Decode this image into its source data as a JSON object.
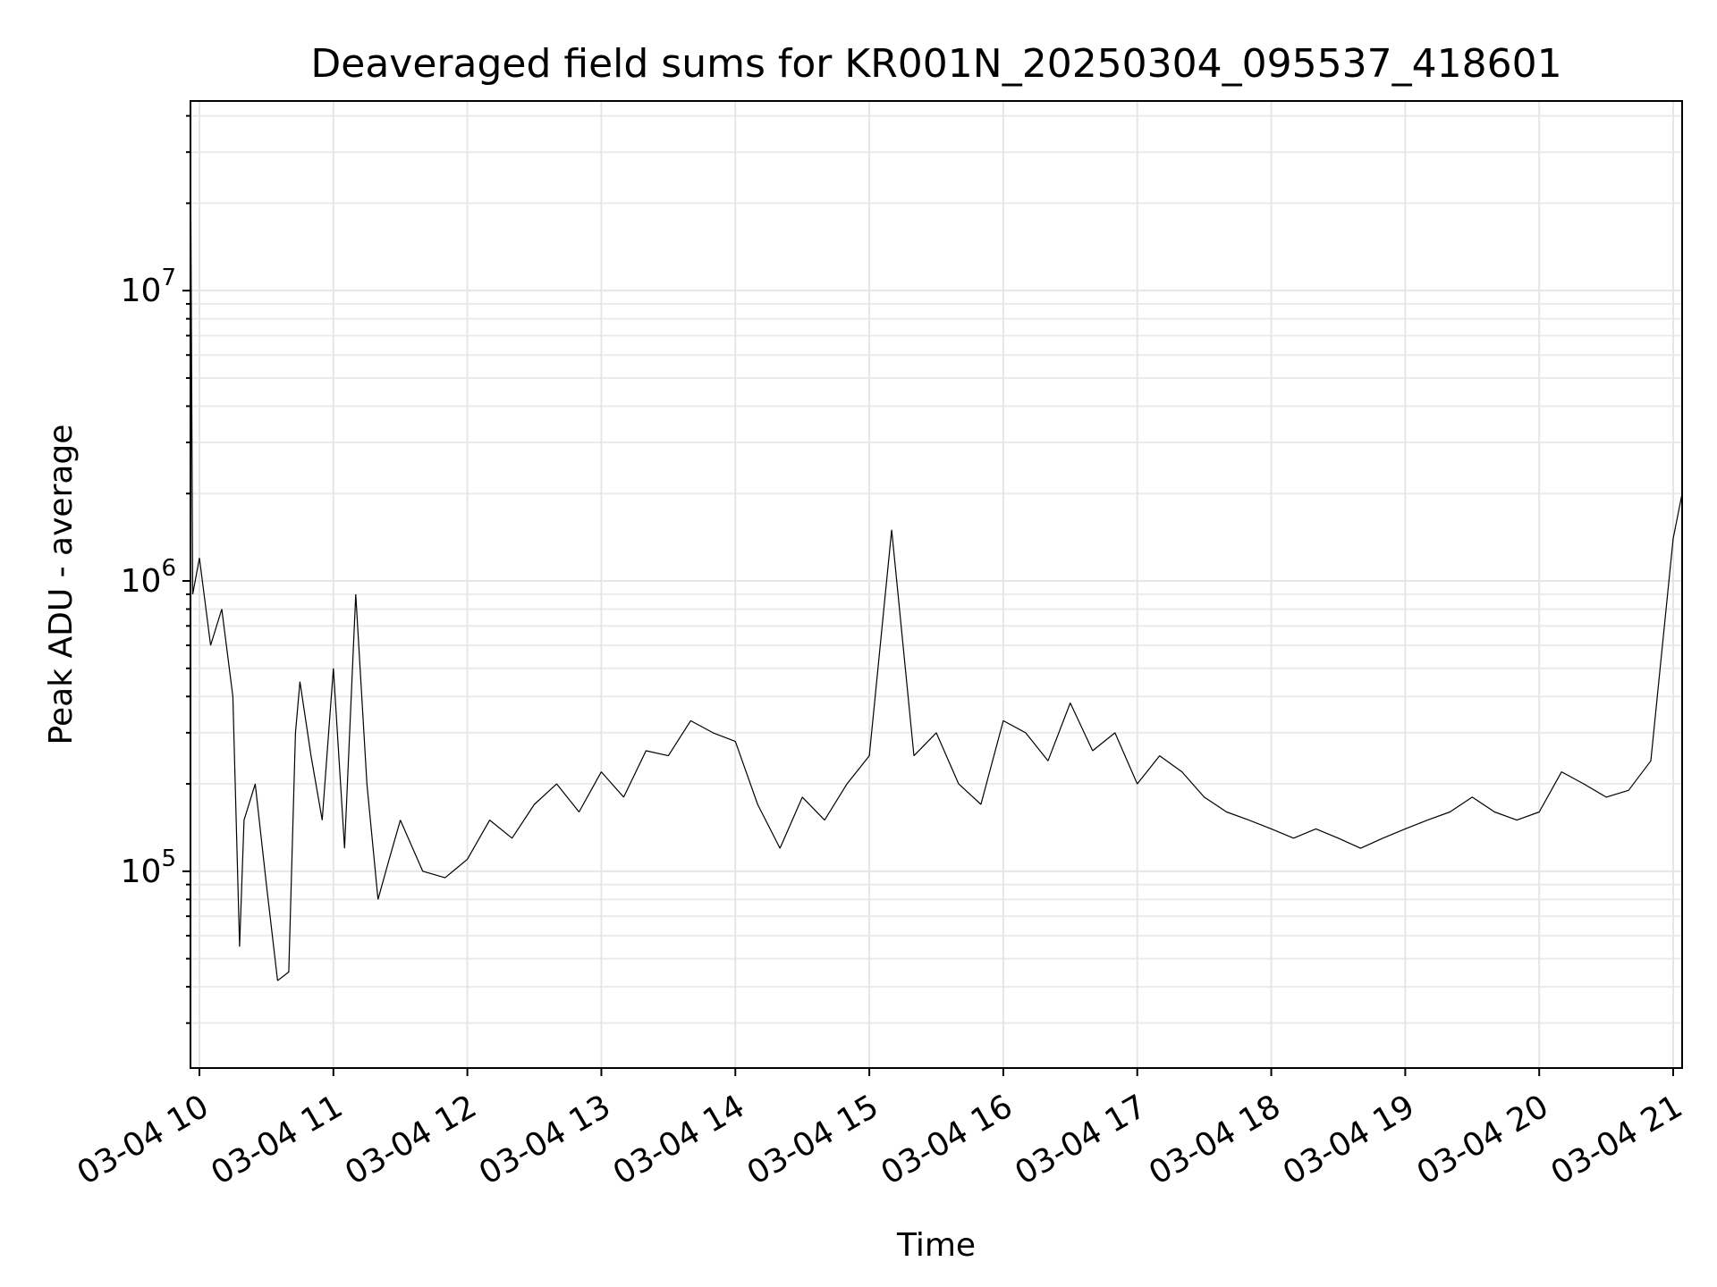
{
  "chart_data": {
    "type": "line",
    "title": "Deaveraged field sums for KR001N_20250304_095537_418601",
    "xlabel": "Time",
    "ylabel": "Peak ADU - average",
    "y_scale": "log",
    "ylim": [
      21000,
      45000000
    ],
    "xlim": [
      "2025-03-04 09:56",
      "2025-03-04 21:04"
    ],
    "grid": true,
    "grid_which": "both",
    "line_color": "#000000",
    "x_ticks": [
      {
        "value": "2025-03-04 10:00",
        "label": "03-04 10"
      },
      {
        "value": "2025-03-04 11:00",
        "label": "03-04 11"
      },
      {
        "value": "2025-03-04 12:00",
        "label": "03-04 12"
      },
      {
        "value": "2025-03-04 13:00",
        "label": "03-04 13"
      },
      {
        "value": "2025-03-04 14:00",
        "label": "03-04 14"
      },
      {
        "value": "2025-03-04 15:00",
        "label": "03-04 15"
      },
      {
        "value": "2025-03-04 16:00",
        "label": "03-04 16"
      },
      {
        "value": "2025-03-04 17:00",
        "label": "03-04 17"
      },
      {
        "value": "2025-03-04 18:00",
        "label": "03-04 18"
      },
      {
        "value": "2025-03-04 19:00",
        "label": "03-04 19"
      },
      {
        "value": "2025-03-04 20:00",
        "label": "03-04 20"
      },
      {
        "value": "2025-03-04 21:00",
        "label": "03-04 21"
      }
    ],
    "y_ticks": [
      {
        "value": 100000,
        "base": "10",
        "exp": "5"
      },
      {
        "value": 1000000,
        "base": "10",
        "exp": "6"
      },
      {
        "value": 10000000,
        "base": "10",
        "exp": "7"
      }
    ],
    "series": [
      {
        "x": [
          "2025-03-04 09:56",
          "2025-03-04 09:57",
          "2025-03-04 10:00",
          "2025-03-04 10:05",
          "2025-03-04 10:10",
          "2025-03-04 10:15",
          "2025-03-04 10:18",
          "2025-03-04 10:20",
          "2025-03-04 10:25",
          "2025-03-04 10:30",
          "2025-03-04 10:35",
          "2025-03-04 10:40",
          "2025-03-04 10:43",
          "2025-03-04 10:45",
          "2025-03-04 10:50",
          "2025-03-04 10:55",
          "2025-03-04 11:00",
          "2025-03-04 11:05",
          "2025-03-04 11:10",
          "2025-03-04 11:15",
          "2025-03-04 11:20",
          "2025-03-04 11:25",
          "2025-03-04 11:30",
          "2025-03-04 11:40",
          "2025-03-04 11:50",
          "2025-03-04 12:00",
          "2025-03-04 12:10",
          "2025-03-04 12:20",
          "2025-03-04 12:30",
          "2025-03-04 12:40",
          "2025-03-04 12:50",
          "2025-03-04 13:00",
          "2025-03-04 13:10",
          "2025-03-04 13:20",
          "2025-03-04 13:30",
          "2025-03-04 13:40",
          "2025-03-04 13:50",
          "2025-03-04 14:00",
          "2025-03-04 14:10",
          "2025-03-04 14:20",
          "2025-03-04 14:30",
          "2025-03-04 14:40",
          "2025-03-04 14:50",
          "2025-03-04 15:00",
          "2025-03-04 15:10",
          "2025-03-04 15:20",
          "2025-03-04 15:30",
          "2025-03-04 15:40",
          "2025-03-04 15:50",
          "2025-03-04 16:00",
          "2025-03-04 16:10",
          "2025-03-04 16:20",
          "2025-03-04 16:30",
          "2025-03-04 16:40",
          "2025-03-04 16:50",
          "2025-03-04 17:00",
          "2025-03-04 17:10",
          "2025-03-04 17:20",
          "2025-03-04 17:30",
          "2025-03-04 17:40",
          "2025-03-04 17:50",
          "2025-03-04 18:00",
          "2025-03-04 18:10",
          "2025-03-04 18:20",
          "2025-03-04 18:30",
          "2025-03-04 18:40",
          "2025-03-04 18:50",
          "2025-03-04 19:00",
          "2025-03-04 19:10",
          "2025-03-04 19:20",
          "2025-03-04 19:30",
          "2025-03-04 19:40",
          "2025-03-04 19:50",
          "2025-03-04 20:00",
          "2025-03-04 20:10",
          "2025-03-04 20:20",
          "2025-03-04 20:30",
          "2025-03-04 20:40",
          "2025-03-04 20:50",
          "2025-03-04 21:00",
          "2025-03-04 21:04"
        ],
        "values": [
          35000000,
          900000,
          1200000,
          600000,
          800000,
          400000,
          55000,
          150000,
          200000,
          90000,
          42000,
          45000,
          300000,
          450000,
          250000,
          150000,
          500000,
          120000,
          900000,
          200000,
          80000,
          110000,
          150000,
          100000,
          95000,
          110000,
          150000,
          130000,
          170000,
          200000,
          160000,
          220000,
          180000,
          260000,
          250000,
          330000,
          300000,
          280000,
          170000,
          120000,
          180000,
          150000,
          200000,
          250000,
          1500000,
          250000,
          300000,
          200000,
          170000,
          330000,
          300000,
          240000,
          380000,
          260000,
          300000,
          200000,
          250000,
          220000,
          180000,
          160000,
          150000,
          140000,
          130000,
          140000,
          130000,
          120000,
          130000,
          140000,
          150000,
          160000,
          180000,
          160000,
          150000,
          160000,
          220000,
          200000,
          180000,
          190000,
          240000,
          1400000,
          2000000
        ]
      }
    ]
  }
}
